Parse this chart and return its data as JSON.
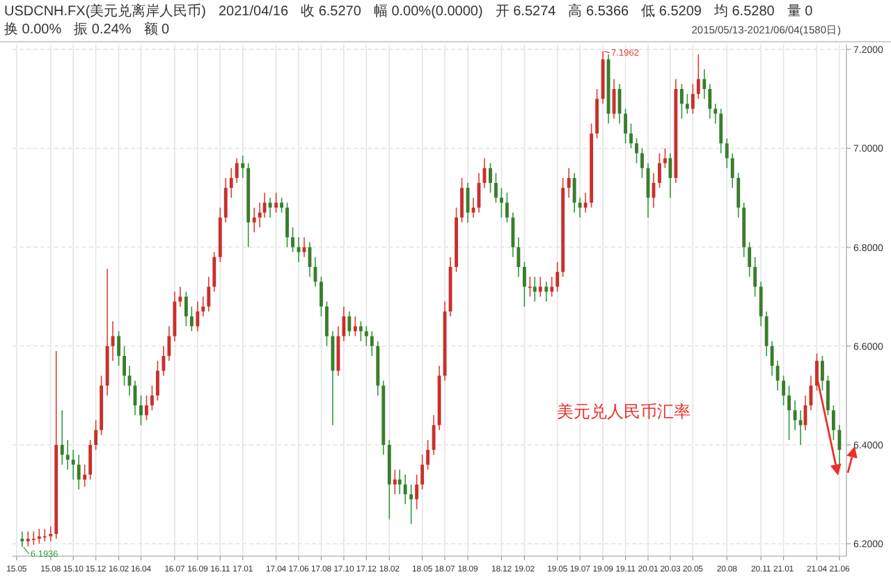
{
  "chart_data": {
    "type": "candlestick",
    "title": "USDCNH.FX(美元兑离岸人民币)",
    "subtitle": "2015/05/13-2021/06/04(1580日)",
    "annotations": [
      "2021/04/16",
      "收 6.5270",
      "幅 0.00%(0.0000)",
      "开 6.5274",
      "高 6.5366",
      "低 6.5209",
      "均 6.5280",
      "量 0",
      "换 0.00%",
      "振 0.24%",
      "额 0",
      "美元兑人民币汇率",
      {
        "text": "7.1962",
        "x": "2019-09-01",
        "y": 7.1962
      },
      {
        "text": "6.1936",
        "x": "2015-05-16",
        "y": 6.1936
      }
    ],
    "x": [
      "2015-05-16",
      "2015-06-01",
      "2015-06-16",
      "2015-07-01",
      "2015-07-16",
      "2015-08-01",
      "2015-08-16",
      "2015-09-01",
      "2015-09-16",
      "2015-10-01",
      "2015-10-16",
      "2015-11-01",
      "2015-11-16",
      "2015-12-01",
      "2015-12-16",
      "2016-01-01",
      "2016-01-16",
      "2016-02-01",
      "2016-02-16",
      "2016-03-01",
      "2016-03-16",
      "2016-04-01",
      "2016-04-16",
      "2016-05-01",
      "2016-05-16",
      "2016-06-01",
      "2016-06-16",
      "2016-07-01",
      "2016-07-16",
      "2016-08-01",
      "2016-08-16",
      "2016-09-01",
      "2016-09-16",
      "2016-10-01",
      "2016-10-16",
      "2016-11-01",
      "2016-11-16",
      "2016-12-01",
      "2016-12-16",
      "2017-01-01",
      "2017-01-16",
      "2017-02-01",
      "2017-02-16",
      "2017-03-01",
      "2017-03-16",
      "2017-04-01",
      "2017-04-16",
      "2017-05-01",
      "2017-05-16",
      "2017-06-01",
      "2017-06-16",
      "2017-07-01",
      "2017-07-16",
      "2017-08-01",
      "2017-08-16",
      "2017-09-01",
      "2017-09-16",
      "2017-10-01",
      "2017-10-16",
      "2017-11-01",
      "2017-11-16",
      "2017-12-01",
      "2017-12-16",
      "2018-01-01",
      "2018-01-16",
      "2018-02-01",
      "2018-02-16",
      "2018-03-01",
      "2018-03-16",
      "2018-04-01",
      "2018-04-16",
      "2018-05-01",
      "2018-05-16",
      "2018-06-01",
      "2018-06-16",
      "2018-07-01",
      "2018-07-16",
      "2018-08-01",
      "2018-08-16",
      "2018-09-01",
      "2018-09-16",
      "2018-10-01",
      "2018-10-16",
      "2018-11-01",
      "2018-11-16",
      "2018-12-01",
      "2018-12-16",
      "2019-01-01",
      "2019-01-16",
      "2019-02-01",
      "2019-02-16",
      "2019-03-01",
      "2019-03-16",
      "2019-04-01",
      "2019-04-16",
      "2019-05-01",
      "2019-05-16",
      "2019-06-01",
      "2019-06-16",
      "2019-07-01",
      "2019-07-16",
      "2019-08-01",
      "2019-08-16",
      "2019-09-01",
      "2019-09-16",
      "2019-10-01",
      "2019-10-16",
      "2019-11-01",
      "2019-11-16",
      "2019-12-01",
      "2019-12-16",
      "2020-01-01",
      "2020-01-16",
      "2020-02-01",
      "2020-02-16",
      "2020-03-01",
      "2020-03-16",
      "2020-04-01",
      "2020-04-16",
      "2020-05-01",
      "2020-05-16",
      "2020-06-01",
      "2020-06-16",
      "2020-07-01",
      "2020-07-16",
      "2020-08-01",
      "2020-08-16",
      "2020-09-01",
      "2020-09-16",
      "2020-10-01",
      "2020-10-16",
      "2020-11-01",
      "2020-11-16",
      "2020-12-01",
      "2020-12-16",
      "2021-01-01",
      "2021-01-16",
      "2021-02-01",
      "2021-02-16",
      "2021-03-01",
      "2021-03-16",
      "2021-04-01",
      "2021-04-16",
      "2021-05-01",
      "2021-05-16",
      "2021-06-01"
    ],
    "ohlc": [
      [
        6.21,
        6.225,
        6.1936,
        6.205
      ],
      [
        6.205,
        6.225,
        6.195,
        6.21
      ],
      [
        6.21,
        6.225,
        6.198,
        6.21
      ],
      [
        6.21,
        6.23,
        6.2,
        6.215
      ],
      [
        6.215,
        6.23,
        6.205,
        6.215
      ],
      [
        6.215,
        6.235,
        6.205,
        6.22
      ],
      [
        6.22,
        6.59,
        6.21,
        6.4
      ],
      [
        6.4,
        6.47,
        6.36,
        6.38
      ],
      [
        6.38,
        6.41,
        6.35,
        6.37
      ],
      [
        6.37,
        6.39,
        6.33,
        6.36
      ],
      [
        6.36,
        6.38,
        6.31,
        6.33
      ],
      [
        6.33,
        6.36,
        6.315,
        6.34
      ],
      [
        6.34,
        6.41,
        6.33,
        6.4
      ],
      [
        6.4,
        6.45,
        6.39,
        6.43
      ],
      [
        6.43,
        6.54,
        6.42,
        6.52
      ],
      [
        6.52,
        6.756,
        6.5,
        6.6
      ],
      [
        6.6,
        6.65,
        6.57,
        6.62
      ],
      [
        6.62,
        6.63,
        6.56,
        6.58
      ],
      [
        6.58,
        6.6,
        6.52,
        6.54
      ],
      [
        6.54,
        6.56,
        6.5,
        6.52
      ],
      [
        6.52,
        6.53,
        6.46,
        6.48
      ],
      [
        6.48,
        6.5,
        6.44,
        6.46
      ],
      [
        6.46,
        6.5,
        6.45,
        6.48
      ],
      [
        6.48,
        6.52,
        6.47,
        6.5
      ],
      [
        6.5,
        6.57,
        6.49,
        6.55
      ],
      [
        6.55,
        6.6,
        6.54,
        6.58
      ],
      [
        6.58,
        6.64,
        6.57,
        6.62
      ],
      [
        6.62,
        6.71,
        6.61,
        6.69
      ],
      [
        6.69,
        6.72,
        6.68,
        6.7
      ],
      [
        6.7,
        6.71,
        6.64,
        6.66
      ],
      [
        6.66,
        6.68,
        6.63,
        6.64
      ],
      [
        6.64,
        6.69,
        6.63,
        6.67
      ],
      [
        6.67,
        6.7,
        6.66,
        6.68
      ],
      [
        6.68,
        6.74,
        6.67,
        6.72
      ],
      [
        6.72,
        6.79,
        6.71,
        6.78
      ],
      [
        6.78,
        6.88,
        6.77,
        6.86
      ],
      [
        6.86,
        6.94,
        6.85,
        6.92
      ],
      [
        6.92,
        6.96,
        6.9,
        6.94
      ],
      [
        6.94,
        6.98,
        6.93,
        6.97
      ],
      [
        6.97,
        6.985,
        6.94,
        6.96
      ],
      [
        6.96,
        6.97,
        6.8,
        6.85
      ],
      [
        6.85,
        6.88,
        6.83,
        6.86
      ],
      [
        6.86,
        6.89,
        6.84,
        6.87
      ],
      [
        6.87,
        6.91,
        6.86,
        6.89
      ],
      [
        6.89,
        6.9,
        6.86,
        6.88
      ],
      [
        6.88,
        6.91,
        6.87,
        6.89
      ],
      [
        6.89,
        6.9,
        6.87,
        6.88
      ],
      [
        6.88,
        6.89,
        6.8,
        6.82
      ],
      [
        6.82,
        6.84,
        6.79,
        6.8
      ],
      [
        6.8,
        6.82,
        6.77,
        6.79
      ],
      [
        6.79,
        6.82,
        6.78,
        6.8
      ],
      [
        6.8,
        6.81,
        6.74,
        6.76
      ],
      [
        6.76,
        6.78,
        6.72,
        6.73
      ],
      [
        6.73,
        6.74,
        6.66,
        6.68
      ],
      [
        6.68,
        6.69,
        6.6,
        6.62
      ],
      [
        6.62,
        6.63,
        6.44,
        6.55
      ],
      [
        6.55,
        6.64,
        6.54,
        6.62
      ],
      [
        6.62,
        6.68,
        6.61,
        6.66
      ],
      [
        6.66,
        6.67,
        6.62,
        6.63
      ],
      [
        6.63,
        6.66,
        6.62,
        6.64
      ],
      [
        6.64,
        6.65,
        6.61,
        6.63
      ],
      [
        6.63,
        6.64,
        6.6,
        6.62
      ],
      [
        6.62,
        6.63,
        6.58,
        6.6
      ],
      [
        6.6,
        6.61,
        6.5,
        6.52
      ],
      [
        6.52,
        6.53,
        6.38,
        6.4
      ],
      [
        6.4,
        6.41,
        6.25,
        6.32
      ],
      [
        6.32,
        6.35,
        6.3,
        6.33
      ],
      [
        6.33,
        6.35,
        6.3,
        6.32
      ],
      [
        6.32,
        6.34,
        6.28,
        6.3
      ],
      [
        6.3,
        6.32,
        6.24,
        6.29
      ],
      [
        6.29,
        6.34,
        6.27,
        6.32
      ],
      [
        6.32,
        6.38,
        6.31,
        6.36
      ],
      [
        6.36,
        6.41,
        6.35,
        6.39
      ],
      [
        6.39,
        6.46,
        6.38,
        6.44
      ],
      [
        6.44,
        6.56,
        6.43,
        6.54
      ],
      [
        6.54,
        6.69,
        6.53,
        6.67
      ],
      [
        6.67,
        6.78,
        6.66,
        6.76
      ],
      [
        6.76,
        6.88,
        6.75,
        6.86
      ],
      [
        6.86,
        6.94,
        6.85,
        6.92
      ],
      [
        6.92,
        6.93,
        6.85,
        6.87
      ],
      [
        6.87,
        6.9,
        6.86,
        6.88
      ],
      [
        6.88,
        6.95,
        6.87,
        6.93
      ],
      [
        6.93,
        6.98,
        6.92,
        6.96
      ],
      [
        6.96,
        6.97,
        6.91,
        6.93
      ],
      [
        6.93,
        6.95,
        6.89,
        6.9
      ],
      [
        6.9,
        6.92,
        6.86,
        6.89
      ],
      [
        6.89,
        6.91,
        6.85,
        6.86
      ],
      [
        6.86,
        6.87,
        6.78,
        6.8
      ],
      [
        6.8,
        6.82,
        6.74,
        6.76
      ],
      [
        6.76,
        6.77,
        6.68,
        6.72
      ],
      [
        6.72,
        6.74,
        6.7,
        6.72
      ],
      [
        6.72,
        6.74,
        6.69,
        6.71
      ],
      [
        6.71,
        6.74,
        6.7,
        6.72
      ],
      [
        6.72,
        6.73,
        6.69,
        6.71
      ],
      [
        6.71,
        6.74,
        6.7,
        6.72
      ],
      [
        6.72,
        6.77,
        6.71,
        6.75
      ],
      [
        6.75,
        6.94,
        6.74,
        6.92
      ],
      [
        6.92,
        6.96,
        6.9,
        6.94
      ],
      [
        6.94,
        6.95,
        6.87,
        6.89
      ],
      [
        6.89,
        6.9,
        6.86,
        6.88
      ],
      [
        6.88,
        6.91,
        6.87,
        6.89
      ],
      [
        6.89,
        7.05,
        6.88,
        7.03
      ],
      [
        7.03,
        7.12,
        7.02,
        7.1
      ],
      [
        7.1,
        7.1962,
        7.09,
        7.18
      ],
      [
        7.18,
        7.19,
        7.05,
        7.07
      ],
      [
        7.07,
        7.14,
        7.06,
        7.12
      ],
      [
        7.12,
        7.13,
        7.05,
        7.07
      ],
      [
        7.07,
        7.08,
        7.01,
        7.03
      ],
      [
        7.03,
        7.05,
        7.0,
        7.01
      ],
      [
        7.01,
        7.02,
        6.97,
        6.99
      ],
      [
        6.99,
        7.0,
        6.94,
        6.96
      ],
      [
        6.96,
        6.97,
        6.86,
        6.9
      ],
      [
        6.9,
        6.95,
        6.88,
        6.93
      ],
      [
        6.93,
        6.99,
        6.92,
        6.97
      ],
      [
        6.97,
        7.0,
        6.96,
        6.98
      ],
      [
        6.98,
        6.99,
        6.9,
        6.94
      ],
      [
        6.94,
        7.14,
        6.93,
        7.12
      ],
      [
        7.12,
        7.13,
        7.06,
        7.09
      ],
      [
        7.09,
        7.11,
        7.07,
        7.08
      ],
      [
        7.08,
        7.13,
        7.07,
        7.11
      ],
      [
        7.11,
        7.19,
        7.1,
        7.14
      ],
      [
        7.14,
        7.16,
        7.1,
        7.12
      ],
      [
        7.12,
        7.13,
        7.06,
        7.08
      ],
      [
        7.08,
        7.09,
        7.05,
        7.07
      ],
      [
        7.07,
        7.08,
        6.99,
        7.01
      ],
      [
        7.01,
        7.02,
        6.96,
        6.98
      ],
      [
        6.98,
        6.99,
        6.92,
        6.94
      ],
      [
        6.94,
        6.95,
        6.86,
        6.88
      ],
      [
        6.88,
        6.89,
        6.78,
        6.8
      ],
      [
        6.8,
        6.81,
        6.74,
        6.76
      ],
      [
        6.76,
        6.78,
        6.7,
        6.72
      ],
      [
        6.72,
        6.73,
        6.64,
        6.66
      ],
      [
        6.66,
        6.67,
        6.58,
        6.6
      ],
      [
        6.6,
        6.61,
        6.54,
        6.56
      ],
      [
        6.56,
        6.57,
        6.51,
        6.53
      ],
      [
        6.53,
        6.54,
        6.48,
        6.5
      ],
      [
        6.5,
        6.52,
        6.41,
        6.47
      ],
      [
        6.47,
        6.49,
        6.43,
        6.45
      ],
      [
        6.45,
        6.47,
        6.4,
        6.44
      ],
      [
        6.44,
        6.5,
        6.43,
        6.48
      ],
      [
        6.48,
        6.54,
        6.47,
        6.52
      ],
      [
        6.52,
        6.585,
        6.51,
        6.57
      ],
      [
        6.57,
        6.58,
        6.51,
        6.53
      ],
      [
        6.53,
        6.54,
        6.46,
        6.47
      ],
      [
        6.47,
        6.48,
        6.41,
        6.43
      ],
      [
        6.43,
        6.44,
        6.36,
        6.39
      ]
    ],
    "xlim": [
      "2015-04-20",
      "2021-06-20"
    ],
    "xticks": [
      {
        "value": "2015-05-01",
        "label": "15.05"
      },
      {
        "value": "2015-08-01",
        "label": "15.08"
      },
      {
        "value": "2015-10-01",
        "label": "15.10"
      },
      {
        "value": "2015-12-01",
        "label": "15.12"
      },
      {
        "value": "2016-02-01",
        "label": "16.02"
      },
      {
        "value": "2016-04-01",
        "label": "16.04"
      },
      {
        "value": "2016-07-01",
        "label": "16.07"
      },
      {
        "value": "2016-09-01",
        "label": "16.09"
      },
      {
        "value": "2016-11-01",
        "label": "16.11"
      },
      {
        "value": "2017-01-01",
        "label": "17.01"
      },
      {
        "value": "2017-04-01",
        "label": "17.04"
      },
      {
        "value": "2017-06-01",
        "label": "17.06"
      },
      {
        "value": "2017-08-01",
        "label": "17.08"
      },
      {
        "value": "2017-10-01",
        "label": "17.10"
      },
      {
        "value": "2017-12-01",
        "label": "17.12"
      },
      {
        "value": "2018-02-01",
        "label": "18.02"
      },
      {
        "value": "2018-05-01",
        "label": "18.05"
      },
      {
        "value": "2018-07-01",
        "label": "18.07"
      },
      {
        "value": "2018-09-01",
        "label": "18.09"
      },
      {
        "value": "2018-12-01",
        "label": "18.12"
      },
      {
        "value": "2019-02-01",
        "label": "19.02"
      },
      {
        "value": "2019-05-01",
        "label": "19.05"
      },
      {
        "value": "2019-07-01",
        "label": "19.07"
      },
      {
        "value": "2019-09-01",
        "label": "19.09"
      },
      {
        "value": "2019-11-01",
        "label": "19.11"
      },
      {
        "value": "2020-01-01",
        "label": "20.01"
      },
      {
        "value": "2020-03-01",
        "label": "20.03"
      },
      {
        "value": "2020-05-01",
        "label": "20.05"
      },
      {
        "value": "2020-08-01",
        "label": "20.08"
      },
      {
        "value": "2020-11-01",
        "label": "20.11"
      },
      {
        "value": "2021-01-01",
        "label": "21.01"
      },
      {
        "value": "2021-04-01",
        "label": "21.04"
      },
      {
        "value": "2021-06-01",
        "label": "21.06"
      }
    ],
    "ylim": [
      6.175,
      7.21
    ],
    "yticks": [
      {
        "value": 6.2,
        "label": "6.2000"
      },
      {
        "value": 6.4,
        "label": "6.4000"
      },
      {
        "value": 6.6,
        "label": "6.6000"
      },
      {
        "value": 6.8,
        "label": "6.8000"
      },
      {
        "value": 7.0,
        "label": "7.0000"
      },
      {
        "value": 7.2,
        "label": "7.2000"
      }
    ],
    "grid": true
  }
}
